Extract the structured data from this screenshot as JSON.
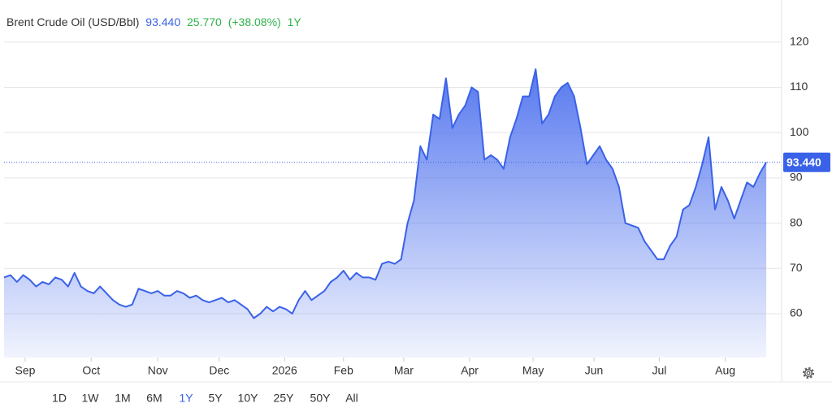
{
  "chart_data": {
    "type": "area",
    "title": "Brent Crude Oil (USD/Bbl)",
    "last_price": "93.440",
    "change": "25.770",
    "change_pct": "(+38.08%)",
    "period": "1Y",
    "color": "#3a62e8",
    "series": [
      {
        "name": "Brent Crude Oil",
        "color": "#3a62e8",
        "values": [
          68,
          68.5,
          67,
          68.5,
          67.5,
          66,
          67,
          66.5,
          68,
          67.5,
          66,
          69,
          66,
          65,
          64.5,
          66,
          64.5,
          63,
          62,
          61.5,
          62,
          65.5,
          65,
          64.5,
          65,
          64,
          64,
          65,
          64.5,
          63.5,
          64,
          63,
          62.5,
          63,
          63.5,
          62.5,
          63,
          62,
          61,
          59,
          60,
          61.5,
          60.5,
          61.5,
          61,
          60,
          63,
          65,
          63,
          64,
          65,
          67,
          68,
          69.5,
          67.5,
          69,
          68,
          68,
          67.5,
          71,
          71.5,
          71,
          72,
          80,
          85,
          97,
          94,
          104,
          103,
          112,
          101,
          104,
          106,
          110,
          109,
          94,
          95,
          94,
          92,
          99,
          103,
          108,
          108,
          114,
          102,
          104,
          108,
          110,
          111,
          108,
          101,
          93,
          95,
          97,
          94,
          92,
          88,
          80,
          79.5,
          79,
          76,
          74,
          72,
          72,
          75,
          77,
          83,
          84,
          88,
          93,
          99,
          83,
          88,
          85,
          81,
          85,
          89,
          88,
          91,
          93.44
        ]
      }
    ],
    "xlim": [
      0,
      121.4
    ],
    "xticks": [
      {
        "value": 3.3,
        "label": "Sep"
      },
      {
        "value": 13.6,
        "label": "Oct"
      },
      {
        "value": 24.0,
        "label": "Nov"
      },
      {
        "value": 33.6,
        "label": "Dec"
      },
      {
        "value": 43.8,
        "label": "2026"
      },
      {
        "value": 53.0,
        "label": "Feb"
      },
      {
        "value": 62.4,
        "label": "Mar"
      },
      {
        "value": 72.7,
        "label": "Apr"
      },
      {
        "value": 82.6,
        "label": "May"
      },
      {
        "value": 92.1,
        "label": "Jun"
      },
      {
        "value": 102.3,
        "label": "Jul"
      },
      {
        "value": 112.6,
        "label": "Aug"
      }
    ],
    "ylim": [
      50.3,
      129.3
    ],
    "yticks": [
      60,
      70,
      80,
      90,
      100,
      110,
      120
    ],
    "grid": true,
    "ranges": [
      "1D",
      "1W",
      "1M",
      "6M",
      "1Y",
      "5Y",
      "10Y",
      "25Y",
      "50Y",
      "All"
    ],
    "active_range": "1Y"
  }
}
